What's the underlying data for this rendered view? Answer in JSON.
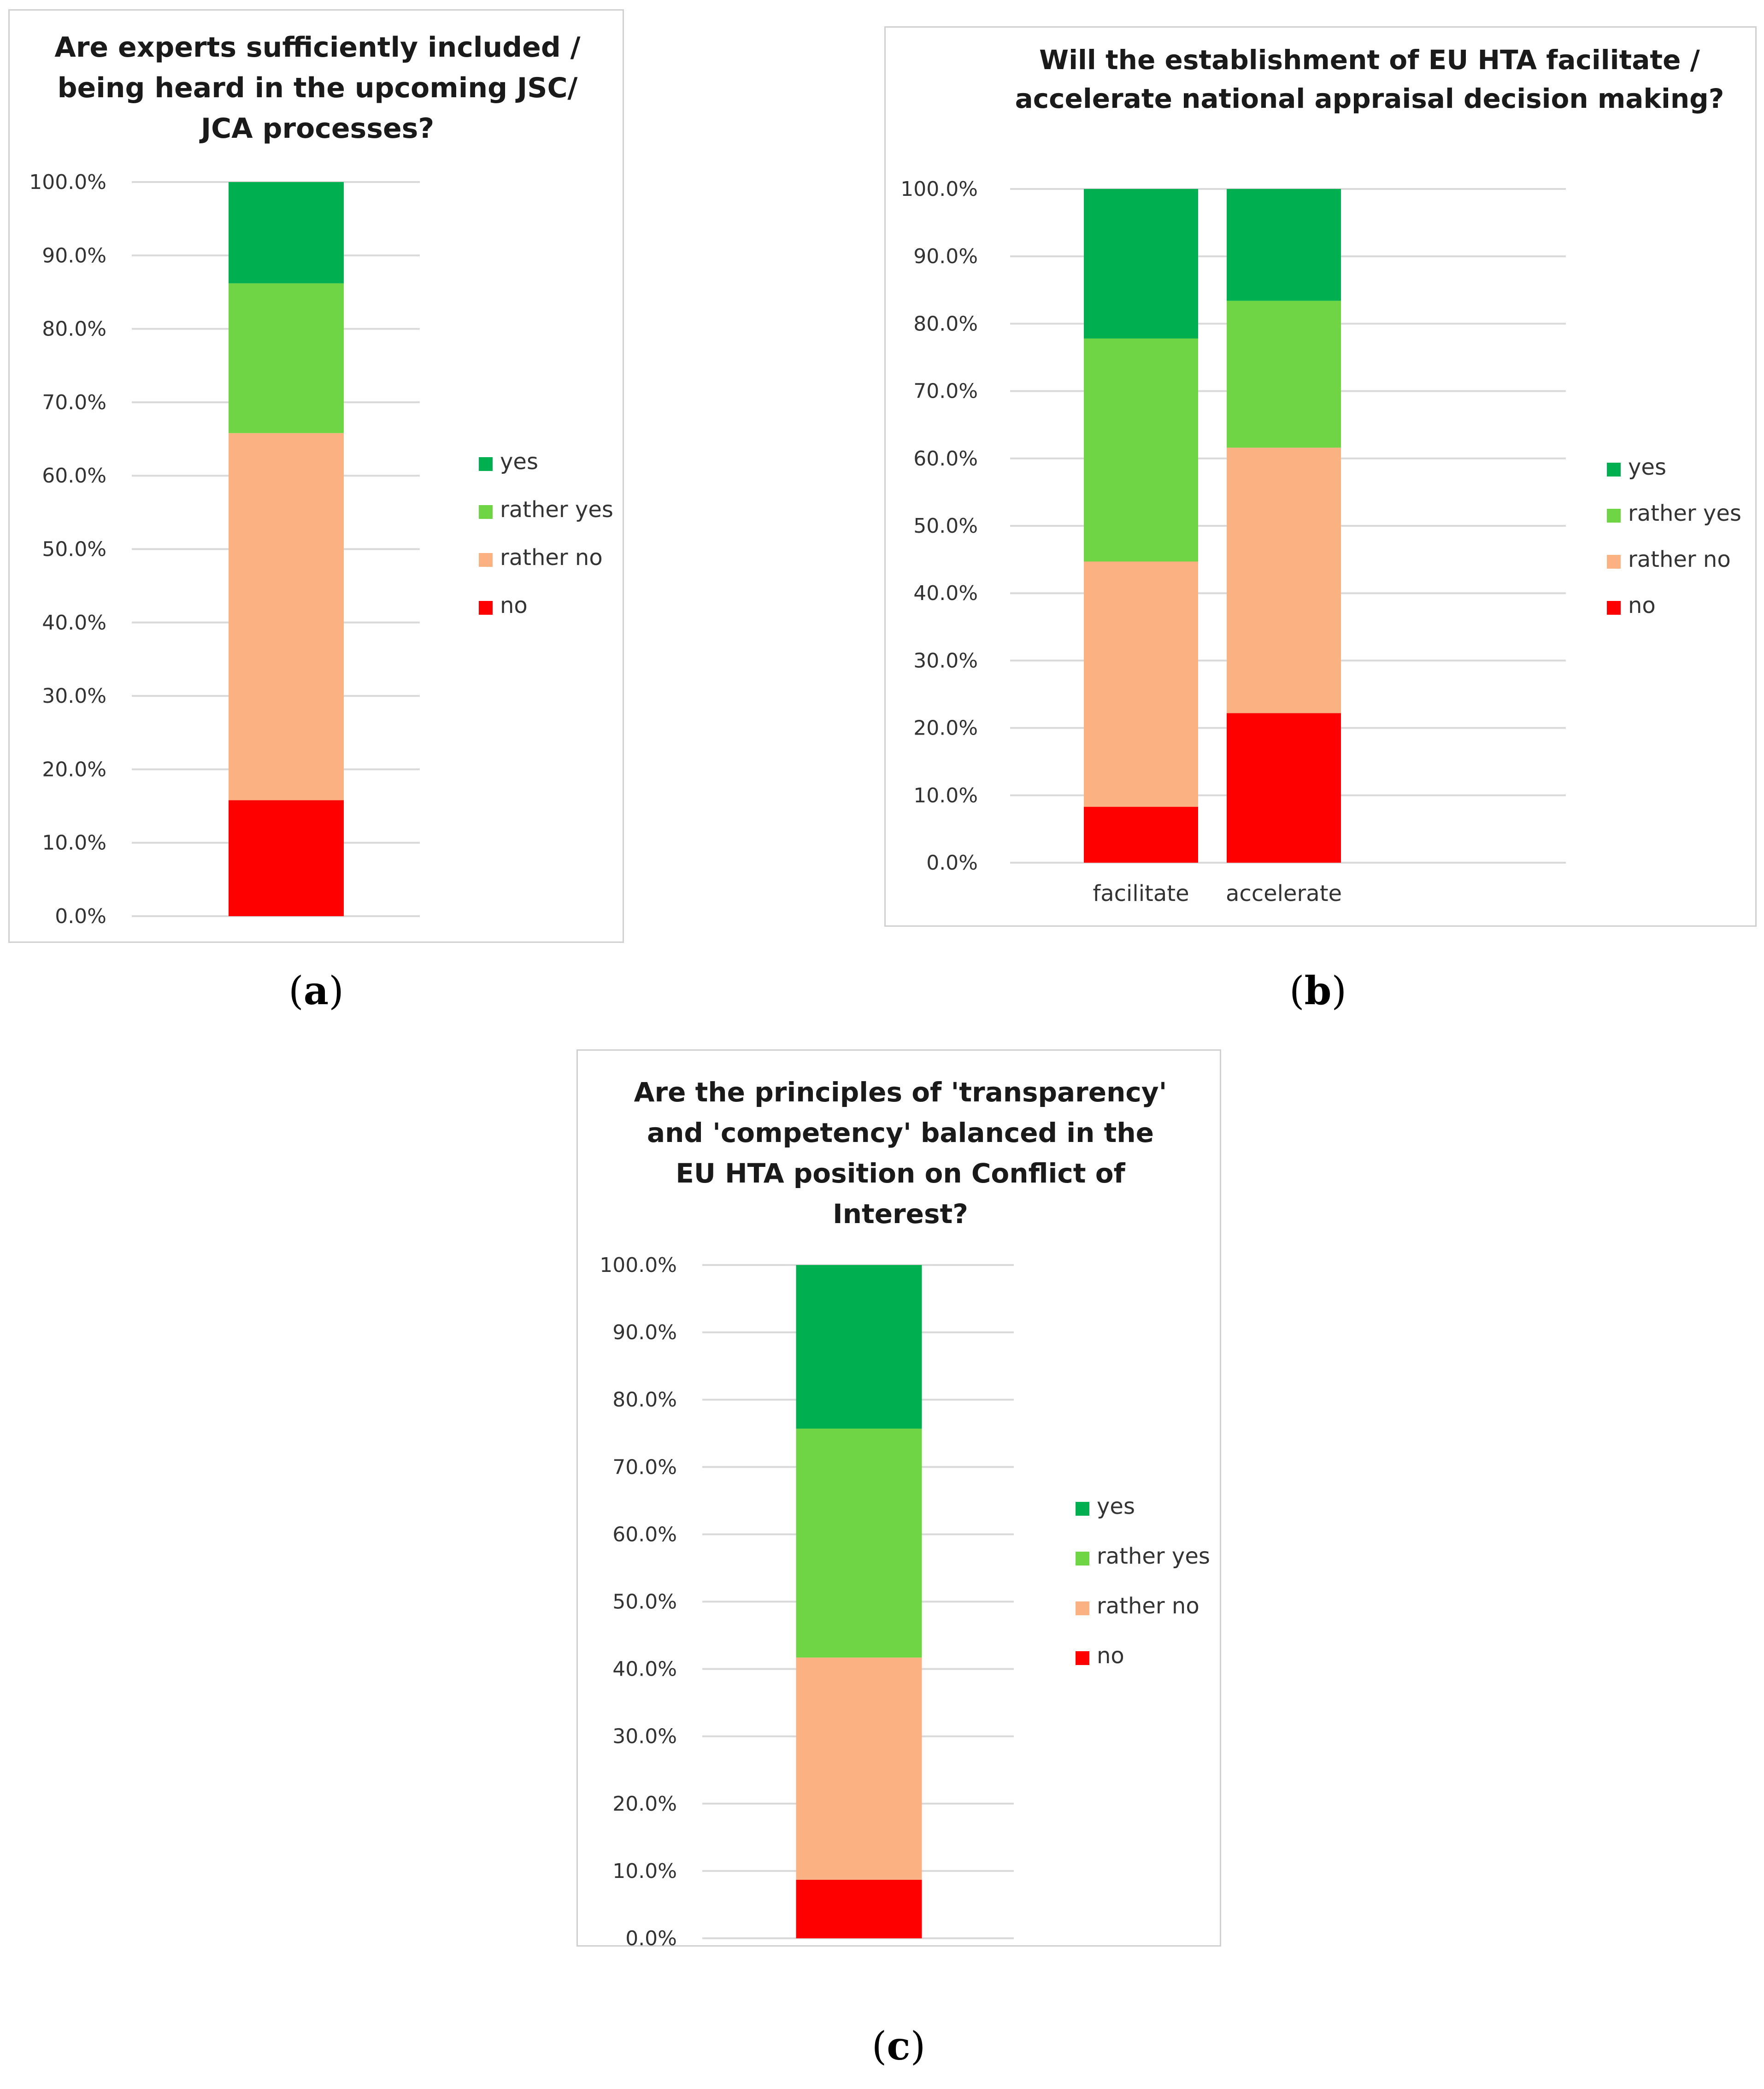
{
  "panels": [
    {
      "caption_letter": "a",
      "chart_data": {
        "type": "bar",
        "stacked": true,
        "title": [
          "Are experts sufficiently included /",
          "being heard in the upcoming JSC/",
          "JCA processes?"
        ],
        "categories": [
          ""
        ],
        "series": [
          {
            "name": "no",
            "color": "#ff0000",
            "values": [
              15.8
            ]
          },
          {
            "name": "rather no",
            "color": "#fbb283",
            "values": [
              50.0
            ]
          },
          {
            "name": "rather yes",
            "color": "#70d545",
            "values": [
              20.4
            ]
          },
          {
            "name": "yes",
            "color": "#00b050",
            "values": [
              13.8
            ]
          }
        ],
        "legend": [
          "yes",
          "rather yes",
          "rather no",
          "no"
        ],
        "legend_position": "right",
        "ylim": [
          0,
          100
        ],
        "yticks": [
          "0.0%",
          "10.0%",
          "20.0%",
          "30.0%",
          "40.0%",
          "50.0%",
          "60.0%",
          "70.0%",
          "80.0%",
          "90.0%",
          "100.0%"
        ],
        "grid": true
      }
    },
    {
      "caption_letter": "b",
      "chart_data": {
        "type": "bar",
        "stacked": true,
        "title": [
          "Will the establishment of EU HTA facilitate /",
          "accelerate national appraisal decision making?"
        ],
        "categories": [
          "facilitate",
          "accelerate"
        ],
        "series": [
          {
            "name": "no",
            "color": "#ff0000",
            "values": [
              8.3,
              22.2
            ]
          },
          {
            "name": "rather no",
            "color": "#fbb283",
            "values": [
              36.4,
              39.4
            ]
          },
          {
            "name": "rather yes",
            "color": "#70d545",
            "values": [
              33.1,
              21.8
            ]
          },
          {
            "name": "yes",
            "color": "#00b050",
            "values": [
              22.2,
              16.6
            ]
          }
        ],
        "legend": [
          "yes",
          "rather yes",
          "rather no",
          "no"
        ],
        "legend_position": "right",
        "ylim": [
          0,
          100
        ],
        "yticks": [
          "0.0%",
          "10.0%",
          "20.0%",
          "30.0%",
          "40.0%",
          "50.0%",
          "60.0%",
          "70.0%",
          "80.0%",
          "90.0%",
          "100.0%"
        ],
        "grid": true
      }
    },
    {
      "caption_letter": "c",
      "chart_data": {
        "type": "bar",
        "stacked": true,
        "title": [
          "Are the principles of 'transparency'",
          "and 'competency' balanced in the",
          "EU HTA position on Conflict of",
          "Interest?"
        ],
        "categories": [
          ""
        ],
        "series": [
          {
            "name": "no",
            "color": "#ff0000",
            "values": [
              8.7
            ]
          },
          {
            "name": "rather no",
            "color": "#fbb283",
            "values": [
              33.0
            ]
          },
          {
            "name": "rather yes",
            "color": "#70d545",
            "values": [
              34.0
            ]
          },
          {
            "name": "yes",
            "color": "#00b050",
            "values": [
              24.3
            ]
          }
        ],
        "legend": [
          "yes",
          "rather yes",
          "rather no",
          "no"
        ],
        "legend_position": "right",
        "ylim": [
          0,
          100
        ],
        "yticks": [
          "0.0%",
          "10.0%",
          "20.0%",
          "30.0%",
          "40.0%",
          "50.0%",
          "60.0%",
          "70.0%",
          "80.0%",
          "90.0%",
          "100.0%"
        ],
        "grid": true
      }
    }
  ]
}
